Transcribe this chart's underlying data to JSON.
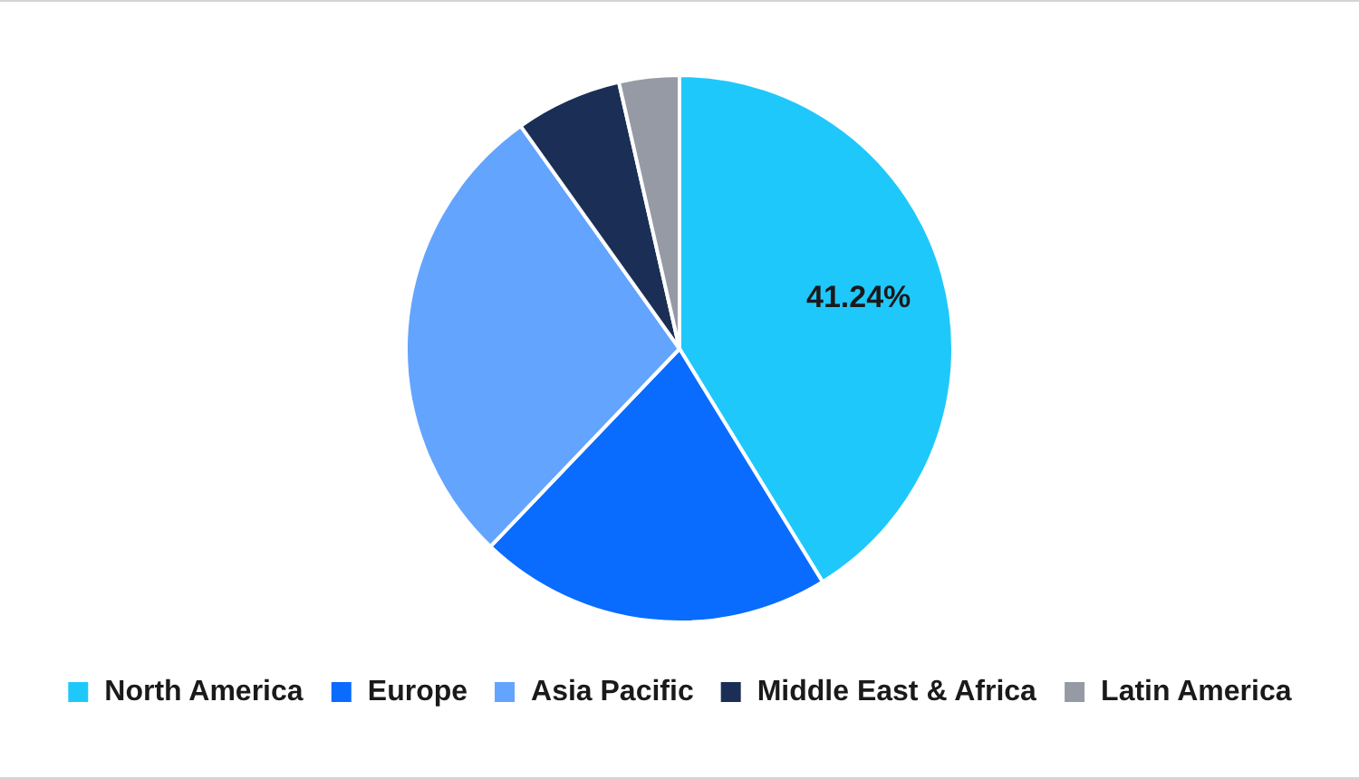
{
  "chart_data": {
    "type": "pie",
    "categories": [
      "North America",
      "Europe",
      "Asia Pacific",
      "Middle East & Africa",
      "Latin America"
    ],
    "values": [
      41.24,
      20.9,
      28.0,
      6.3,
      3.56
    ],
    "colors": [
      "#1fc8fb",
      "#0a6bff",
      "#63a4ff",
      "#1b2f56",
      "#959aa5"
    ],
    "value_labels": [
      "41.24%",
      null,
      null,
      null,
      null
    ],
    "legend": "bottom"
  }
}
